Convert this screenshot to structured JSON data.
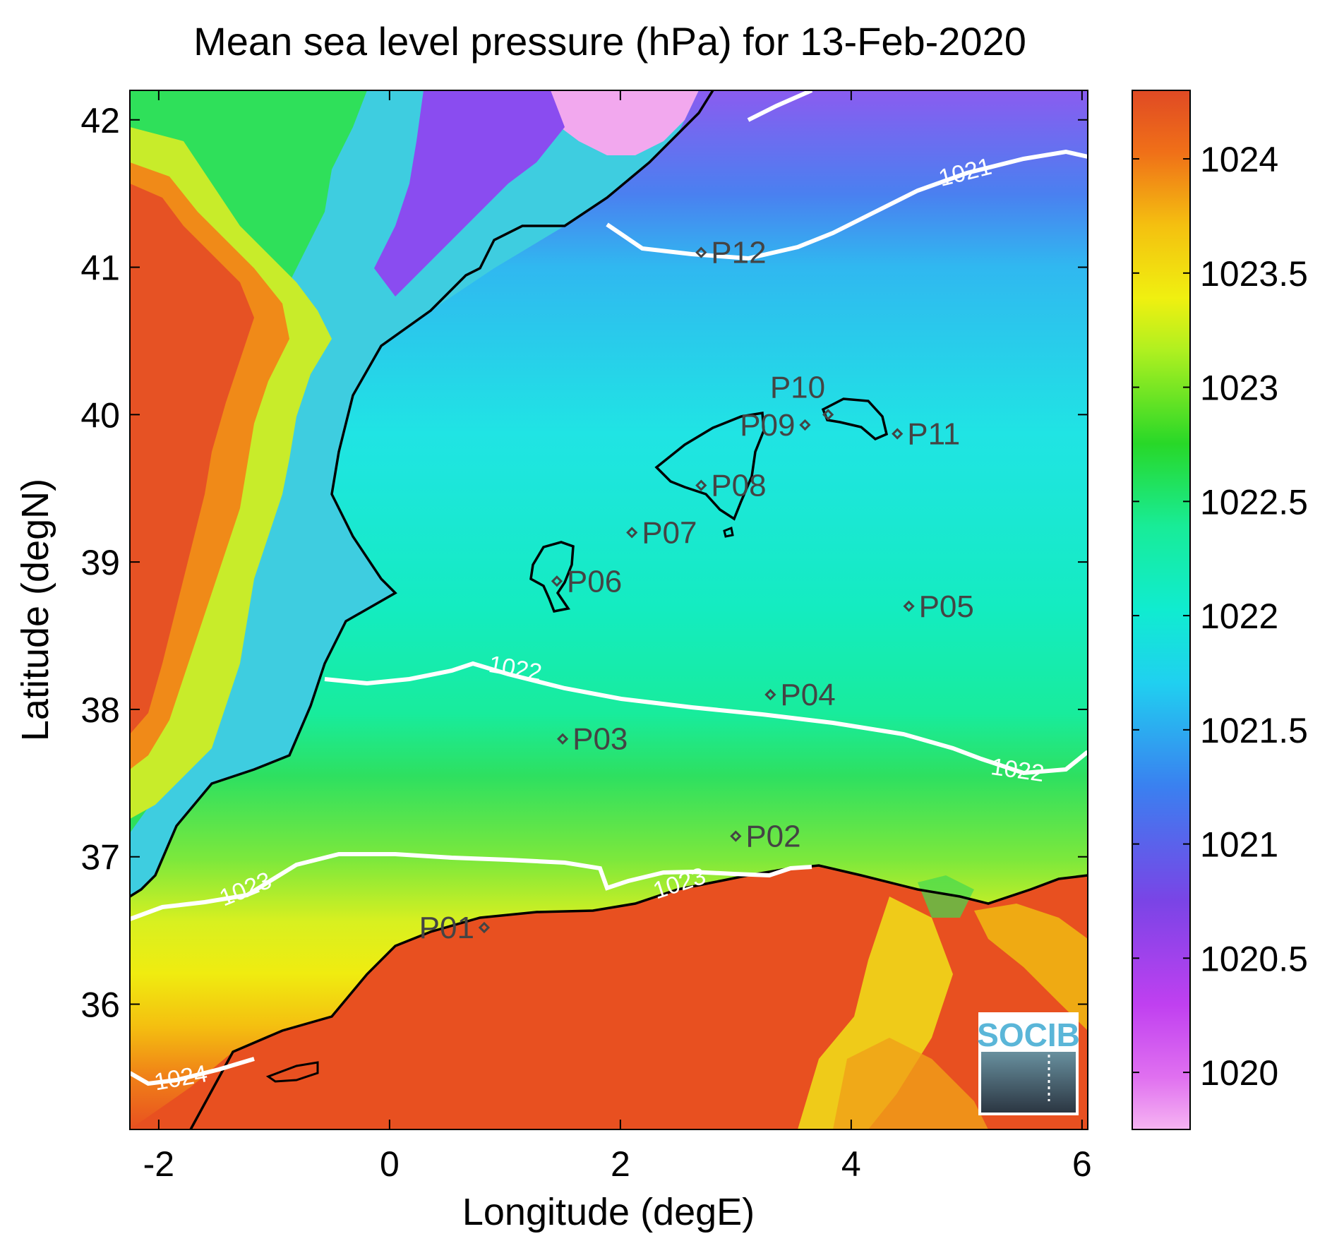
{
  "title": "Mean sea level pressure (hPa) for 13-Feb-2020",
  "xlabel": "Longitude (degE)",
  "ylabel": "Latitude (degN)",
  "x_ticks": [
    "-2",
    "0",
    "2",
    "4",
    "6"
  ],
  "y_ticks": [
    "36",
    "37",
    "38",
    "39",
    "40",
    "41",
    "42"
  ],
  "colorbar": {
    "ticks": [
      "1020",
      "1020.5",
      "1021",
      "1021.5",
      "1022",
      "1022.5",
      "1023",
      "1023.5",
      "1024"
    ],
    "colors": [
      "#f4a8f0",
      "#c64cf0",
      "#7a44e6",
      "#3a8ef0",
      "#10e8d8",
      "#18e888",
      "#28d828",
      "#b8f020",
      "#f0f010",
      "#f0b010",
      "#f05018",
      "#e04828"
    ]
  },
  "contour_labels": [
    "1021",
    "1022",
    "1022",
    "1023",
    "1023",
    "1024"
  ],
  "logo_text": "SOCIB",
  "chart_data": {
    "type": "heatmap",
    "xlim": [
      -2.25,
      6.05
    ],
    "ylim": [
      35.15,
      42.2
    ],
    "clim": [
      1019.75,
      1024.3
    ],
    "contour_levels": [
      1021,
      1022,
      1023,
      1024
    ],
    "stations": [
      {
        "name": "P01",
        "lon": 0.82,
        "lat": 36.52
      },
      {
        "name": "P02",
        "lon": 3.0,
        "lat": 37.14
      },
      {
        "name": "P03",
        "lon": 1.5,
        "lat": 37.8
      },
      {
        "name": "P04",
        "lon": 3.3,
        "lat": 38.1
      },
      {
        "name": "P05",
        "lon": 4.5,
        "lat": 38.7
      },
      {
        "name": "P06",
        "lon": 1.45,
        "lat": 38.87
      },
      {
        "name": "P07",
        "lon": 2.1,
        "lat": 39.2
      },
      {
        "name": "P08",
        "lon": 2.7,
        "lat": 39.52
      },
      {
        "name": "P09",
        "lon": 3.6,
        "lat": 39.93
      },
      {
        "name": "P10",
        "lon": 3.8,
        "lat": 40.0
      },
      {
        "name": "P11",
        "lon": 4.4,
        "lat": 39.87
      },
      {
        "name": "P12",
        "lon": 2.7,
        "lat": 41.1
      }
    ]
  }
}
